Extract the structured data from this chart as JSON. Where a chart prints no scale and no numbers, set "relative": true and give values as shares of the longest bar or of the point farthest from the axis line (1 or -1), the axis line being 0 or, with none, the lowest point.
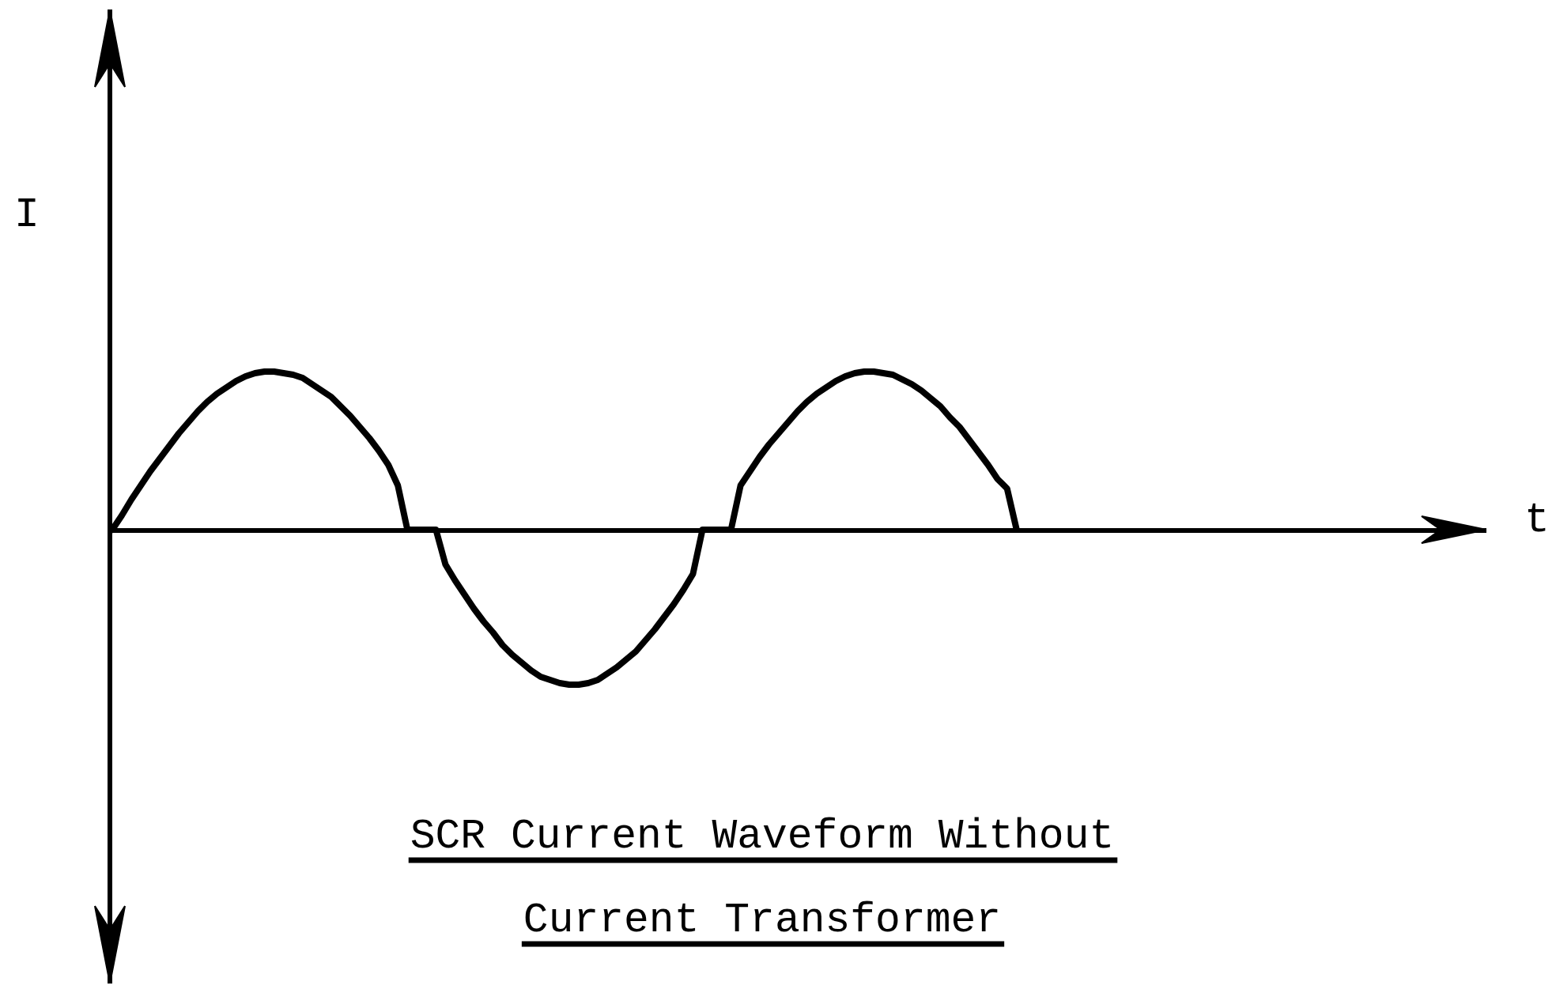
{
  "chart_data": {
    "type": "line",
    "title": "SCR Current Waveform Without\nCurrent Transformer",
    "ylabel": "I",
    "annotations": [
      "t"
    ],
    "relative": true,
    "line_style": "solid",
    "color": "#000000",
    "categories": [
      null,
      null,
      null,
      null,
      null,
      null,
      null,
      null,
      null,
      null,
      null,
      null,
      null,
      null,
      null,
      null,
      null,
      null,
      null,
      null,
      null,
      null,
      null,
      null,
      null,
      null,
      null,
      null,
      null,
      null,
      null,
      null,
      null,
      null,
      null,
      null,
      null,
      null,
      null,
      null,
      null,
      null,
      null,
      null,
      null,
      null,
      null,
      null,
      null,
      null,
      null,
      null,
      null,
      null,
      null,
      null,
      null,
      null,
      null,
      null,
      null,
      null,
      null,
      null,
      null,
      null,
      null,
      null,
      null,
      null,
      null,
      null,
      null,
      null,
      null,
      null,
      null,
      null,
      null,
      null,
      null,
      null,
      null,
      null,
      null,
      null,
      null,
      null,
      null,
      null,
      null,
      null,
      null,
      null,
      null,
      null
    ],
    "values": [
      0,
      0.09,
      0.19,
      0.28,
      0.37,
      0.45,
      0.53,
      0.61,
      0.68,
      0.75,
      0.81,
      0.86,
      0.9,
      0.94,
      0.97,
      0.99,
      1,
      1,
      0.99,
      0.98,
      0.96,
      0.92,
      0.88,
      0.84,
      0.78,
      0.72,
      0.65,
      0.58,
      0.5,
      0.41,
      0.28,
      0,
      0,
      0,
      0,
      -0.22,
      -0.32,
      -0.41,
      -0.5,
      -0.58,
      -0.65,
      -0.73,
      -0.79,
      -0.84,
      -0.89,
      -0.93,
      -0.95,
      -0.97,
      -0.98,
      -0.98,
      -0.97,
      -0.95,
      -0.91,
      -0.87,
      -0.82,
      -0.77,
      -0.7,
      -0.63,
      -0.55,
      -0.47,
      -0.38,
      -0.28,
      0,
      0,
      0,
      0,
      0.28,
      0.37,
      0.46,
      0.54,
      0.61,
      0.68,
      0.75,
      0.81,
      0.86,
      0.9,
      0.94,
      0.97,
      0.99,
      1,
      1,
      0.99,
      0.98,
      0.95,
      0.92,
      0.88,
      0.83,
      0.78,
      0.71,
      0.65,
      0.57,
      0.49,
      0.41,
      0.32,
      0.26,
      0
    ]
  }
}
